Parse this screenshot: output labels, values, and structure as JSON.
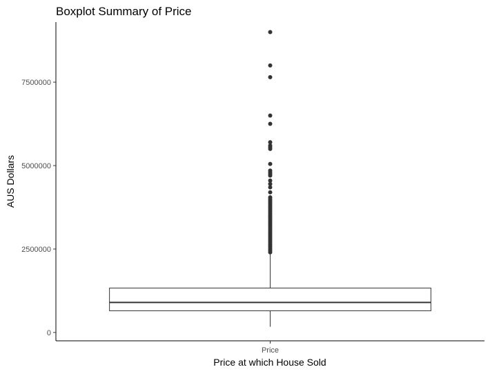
{
  "chart_data": {
    "type": "boxplot",
    "title": "Boxplot Summary of Price",
    "xlabel": "Price at which House Sold",
    "ylabel": "AUS Dollars",
    "categories": [
      "Price"
    ],
    "ylim": [
      -250000,
      9300000
    ],
    "y_ticks": [
      0,
      2500000,
      5000000,
      7500000
    ],
    "y_tick_labels": [
      "0",
      "2500000",
      "5000000",
      "7500000"
    ],
    "grid": false,
    "legend": "none",
    "box": {
      "category": "Price",
      "whisker_low": 170000,
      "q1": 650000,
      "median": 900000,
      "q3": 1330000,
      "whisker_high": 2350000,
      "outliers": [
        9000000,
        8000000,
        7650000,
        6500000,
        6250000,
        5700000,
        5600000,
        5550000,
        5500000,
        5050000,
        4850000,
        4800000,
        4750000,
        4700000,
        4550000,
        4450000,
        4350000,
        4200000,
        4050000,
        4000000,
        3950000,
        3900000,
        3850000,
        3800000,
        3750000,
        3700000,
        3650000,
        3600000,
        3550000,
        3500000,
        3450000,
        3400000,
        3350000,
        3300000,
        3250000,
        3200000,
        3150000,
        3100000,
        3050000,
        3000000,
        2950000,
        2900000,
        2850000,
        2800000,
        2750000,
        2700000,
        2650000,
        2600000,
        2550000,
        2500000,
        2450000,
        2400000
      ]
    },
    "colors": {
      "box_stroke": "#333333",
      "box_fill": "#ffffff",
      "outlier": "#333333",
      "axis": "#000000",
      "tick_text": "#4d4d4d"
    }
  }
}
